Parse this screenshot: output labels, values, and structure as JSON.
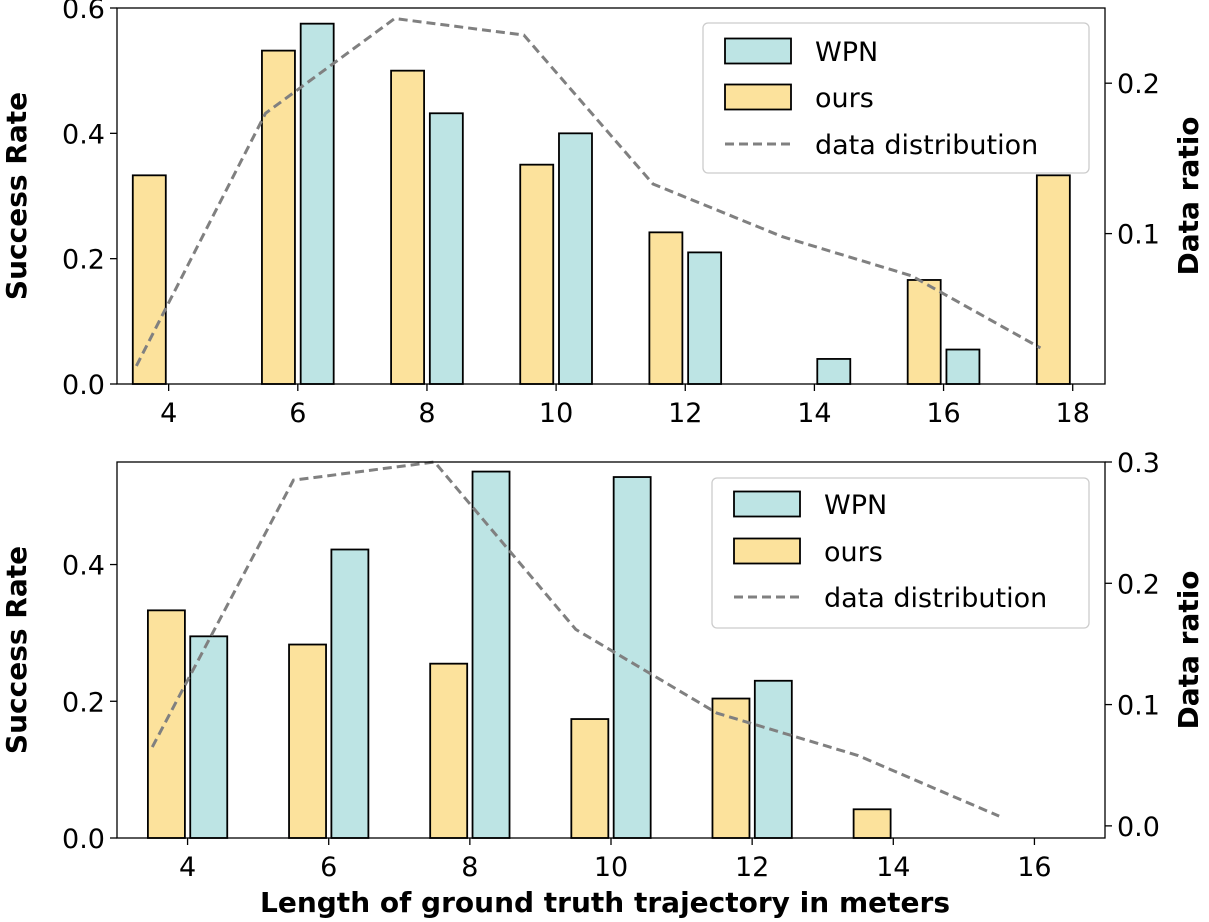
{
  "colors": {
    "wpn": "#bde4e4",
    "ours": "#fce29c",
    "distribution": "#808080"
  },
  "chart_data": [
    {
      "type": "bar",
      "ylabel": "Success Rate",
      "y2label": "Data ratio",
      "xlim": [
        3.2,
        18.5
      ],
      "ylim": [
        0,
        0.6
      ],
      "y2lim": [
        0.0,
        0.25
      ],
      "x_ticks": [
        "4",
        "6",
        "8",
        "10",
        "12",
        "14",
        "16",
        "18"
      ],
      "y_ticks": [
        "0.0",
        "0.2",
        "0.4",
        "0.6"
      ],
      "y2_ticks": [
        "0.1",
        "0.2"
      ],
      "legend": {
        "placement": "top-right",
        "entries": [
          "WPN",
          "ours",
          "data distribution"
        ]
      },
      "series": [
        {
          "name": "WPN",
          "x": [
            4.3,
            6.3,
            8.3,
            10.3,
            12.3,
            14.3,
            16.3,
            18.3
          ],
          "values": [
            0.0,
            0.575,
            0.432,
            0.4,
            0.21,
            0.04,
            0.055,
            0.0
          ]
        },
        {
          "name": "ours",
          "x": [
            3.7,
            5.7,
            7.7,
            9.7,
            11.7,
            13.7,
            15.7,
            17.7
          ],
          "values": [
            0.333,
            0.532,
            0.5,
            0.35,
            0.242,
            0.0,
            0.166,
            0.333
          ]
        },
        {
          "name": "data distribution",
          "kind": "line",
          "x": [
            3.5,
            5.5,
            7.5,
            9.5,
            11.5,
            13.5,
            15.5,
            17.5
          ],
          "values": [
            0.012,
            0.18,
            0.243,
            0.232,
            0.133,
            0.098,
            0.072,
            0.024
          ]
        }
      ]
    },
    {
      "type": "bar",
      "xlabel": "Length of ground truth trajectory in meters",
      "ylabel": "Success Rate",
      "y2label": "Data ratio",
      "xlim": [
        3.0,
        17.0
      ],
      "ylim": [
        0,
        0.55
      ],
      "y2lim": [
        -0.01,
        0.3
      ],
      "x_ticks": [
        "4",
        "6",
        "8",
        "10",
        "12",
        "14",
        "16"
      ],
      "y_ticks": [
        "0.0",
        "0.2",
        "0.4"
      ],
      "y2_ticks": [
        "0.0",
        "0.1",
        "0.2",
        "0.3"
      ],
      "legend": {
        "placement": "top-right",
        "entries": [
          "WPN",
          "ours",
          "data distribution"
        ]
      },
      "series": [
        {
          "name": "WPN",
          "x": [
            4.3,
            6.3,
            8.3,
            10.3,
            12.3,
            14.3
          ],
          "values": [
            0.295,
            0.422,
            0.536,
            0.528,
            0.23,
            0.0
          ]
        },
        {
          "name": "ours",
          "x": [
            3.7,
            5.7,
            7.7,
            9.7,
            11.7,
            13.7
          ],
          "values": [
            0.333,
            0.283,
            0.255,
            0.174,
            0.204,
            0.042
          ]
        },
        {
          "name": "data distribution",
          "kind": "line",
          "x": [
            3.5,
            5.5,
            7.5,
            9.5,
            11.5,
            13.5,
            15.5
          ],
          "values": [
            0.065,
            0.285,
            0.3,
            0.162,
            0.093,
            0.058,
            0.008
          ]
        }
      ]
    }
  ]
}
